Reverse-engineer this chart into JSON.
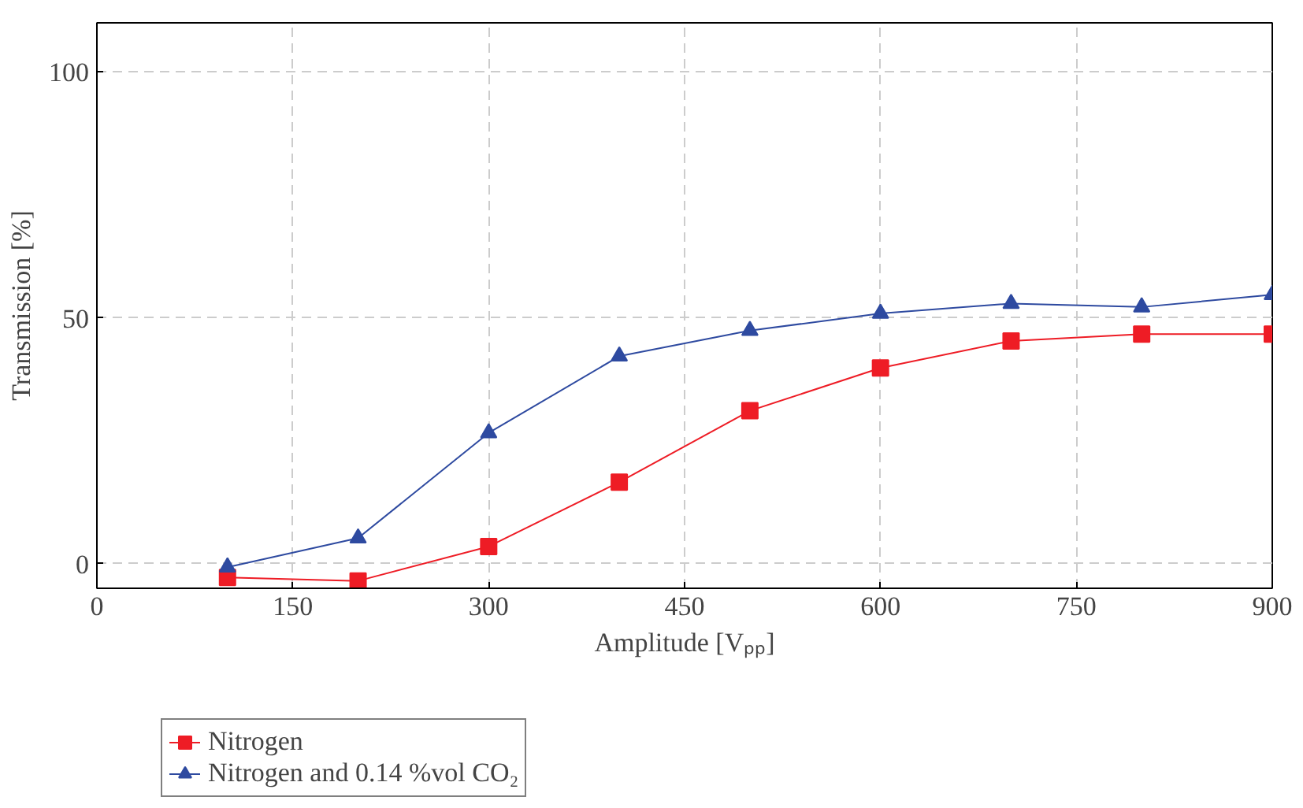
{
  "chart_data": {
    "type": "line",
    "xlabel": "Amplitude [Vₚₚ]",
    "ylabel": "Transmission [%]",
    "x": [
      100,
      200,
      300,
      400,
      500,
      600,
      700,
      800,
      900
    ],
    "series": [
      {
        "name": "Nitrogen",
        "color": "#ee1c25",
        "marker": "square",
        "values": [
          -2.8,
          -3.5,
          3.5,
          16.6,
          31.1,
          39.8,
          45.3,
          46.7,
          46.7
        ]
      },
      {
        "name": "Nitrogen and 0.14 %vol CO₂",
        "color": "#2e4aa0",
        "marker": "triangle",
        "values": [
          -0.7,
          5.2,
          26.6,
          42.2,
          47.4,
          50.9,
          52.9,
          52.2,
          54.7
        ]
      }
    ],
    "xlim": [
      0,
      900
    ],
    "ylim": [
      -5,
      110
    ],
    "xticks": [
      0,
      150,
      300,
      450,
      600,
      750,
      900
    ],
    "yticks": [
      0,
      50,
      100
    ],
    "grid": true,
    "legend": "bottom",
    "line_style": "solid"
  }
}
